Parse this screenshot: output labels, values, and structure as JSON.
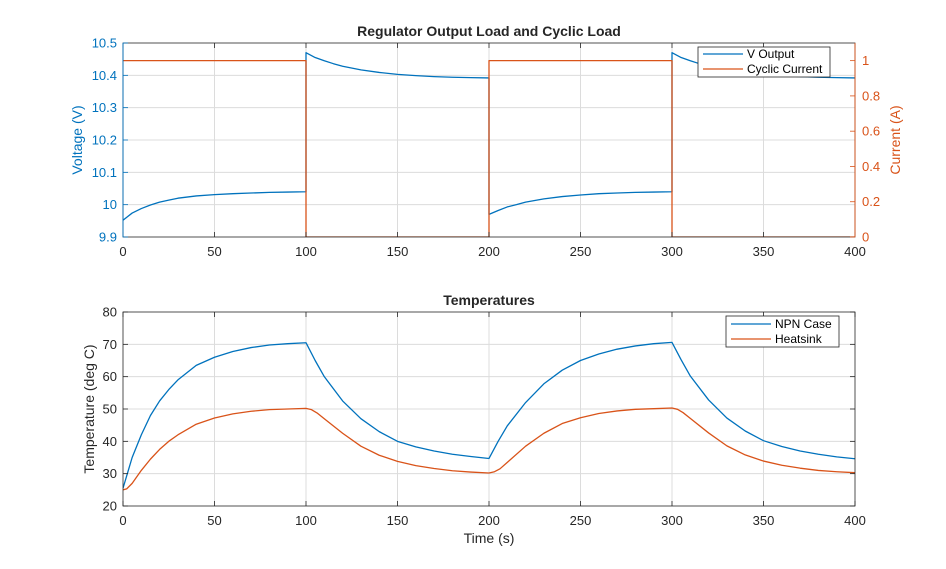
{
  "colors": {
    "blue": "#0072BD",
    "orange": "#D95319",
    "axis": "#262626",
    "grid": "#dcdcdc"
  },
  "chart_data": [
    {
      "type": "line",
      "title": "Regulator Output Load and Cyclic Load",
      "xlabel": "",
      "ylabel_left": "Voltage (V)",
      "ylabel_right": "Current (A)",
      "xlim": [
        0,
        400
      ],
      "ylim_left": [
        9.9,
        10.5
      ],
      "ylim_right": [
        0,
        1.1
      ],
      "xticks": [
        "0",
        "50",
        "100",
        "150",
        "200",
        "250",
        "300",
        "350",
        "400"
      ],
      "yticks_left": [
        "9.9",
        "10",
        "10.1",
        "10.2",
        "10.3",
        "10.4",
        "10.5"
      ],
      "yticks_right": [
        "0",
        "0.2",
        "0.4",
        "0.6",
        "0.8",
        "1"
      ],
      "legend_position": "top-right",
      "series": [
        {
          "name": "V Output",
          "axis": "left",
          "color": "#0072BD",
          "x": [
            0,
            5,
            10,
            15,
            20,
            25,
            30,
            40,
            50,
            60,
            70,
            80,
            90,
            100,
            100,
            105,
            110,
            115,
            120,
            130,
            140,
            150,
            160,
            170,
            180,
            190,
            200,
            200,
            205,
            210,
            215,
            220,
            230,
            240,
            250,
            260,
            270,
            280,
            290,
            300,
            300,
            305,
            310,
            315,
            320,
            330,
            340,
            350,
            360,
            370,
            380,
            390,
            400
          ],
          "y": [
            9.952,
            9.974,
            9.988,
            9.999,
            10.008,
            10.014,
            10.02,
            10.027,
            10.031,
            10.034,
            10.036,
            10.038,
            10.039,
            10.04,
            10.47,
            10.455,
            10.445,
            10.436,
            10.428,
            10.417,
            10.409,
            10.403,
            10.399,
            10.396,
            10.394,
            10.393,
            10.392,
            9.97,
            9.982,
            9.993,
            10.0,
            10.008,
            10.018,
            10.025,
            10.03,
            10.034,
            10.036,
            10.038,
            10.039,
            10.04,
            10.47,
            10.455,
            10.445,
            10.436,
            10.428,
            10.417,
            10.409,
            10.403,
            10.399,
            10.396,
            10.394,
            10.393,
            10.392
          ]
        },
        {
          "name": "Cyclic Current",
          "axis": "right",
          "color": "#D95319",
          "x": [
            0,
            100,
            100,
            200,
            200,
            300,
            300,
            400
          ],
          "y": [
            1,
            1,
            0,
            0,
            1,
            1,
            0,
            0
          ]
        }
      ]
    },
    {
      "type": "line",
      "title": "Temperatures",
      "xlabel": "Time (s)",
      "ylabel": "Temperature (deg C)",
      "xlim": [
        0,
        400
      ],
      "ylim": [
        20,
        80
      ],
      "xticks": [
        "0",
        "50",
        "100",
        "150",
        "200",
        "250",
        "300",
        "350",
        "400"
      ],
      "yticks": [
        "20",
        "30",
        "40",
        "50",
        "60",
        "70",
        "80"
      ],
      "legend_position": "top-right",
      "series": [
        {
          "name": "NPN Case",
          "color": "#0072BD",
          "x": [
            0,
            5,
            10,
            15,
            20,
            25,
            30,
            40,
            50,
            60,
            70,
            80,
            90,
            100,
            105,
            110,
            120,
            130,
            140,
            150,
            160,
            170,
            180,
            190,
            200,
            205,
            210,
            220,
            230,
            240,
            250,
            260,
            270,
            280,
            290,
            300,
            305,
            310,
            320,
            330,
            340,
            350,
            360,
            370,
            380,
            390,
            400
          ],
          "y": [
            25.5,
            35,
            42,
            48,
            52.5,
            56,
            59,
            63.5,
            66,
            67.8,
            69,
            69.8,
            70.2,
            70.5,
            65,
            60,
            52.5,
            47,
            43,
            40,
            38.3,
            37,
            36,
            35.3,
            34.7,
            40,
            44.8,
            52,
            57.8,
            62,
            65,
            67,
            68.5,
            69.5,
            70.2,
            70.6,
            65.2,
            60.2,
            52.8,
            47.2,
            43.2,
            40.2,
            38.4,
            37,
            36,
            35.2,
            34.6
          ]
        },
        {
          "name": "Heatsink",
          "color": "#D95319",
          "x": [
            0,
            2,
            5,
            10,
            15,
            20,
            25,
            30,
            40,
            50,
            60,
            70,
            80,
            90,
            100,
            103,
            106,
            110,
            120,
            130,
            140,
            150,
            160,
            170,
            180,
            190,
            200,
            203,
            206,
            210,
            220,
            230,
            240,
            250,
            260,
            270,
            280,
            290,
            300,
            303,
            306,
            310,
            320,
            330,
            340,
            350,
            360,
            370,
            380,
            390,
            400
          ],
          "y": [
            25,
            25.3,
            27,
            31,
            34.5,
            37.5,
            40,
            42,
            45.3,
            47.2,
            48.5,
            49.3,
            49.8,
            50,
            50.2,
            49.8,
            48.8,
            47,
            42.5,
            38.5,
            35.7,
            33.8,
            32.5,
            31.6,
            30.9,
            30.5,
            30.2,
            30.6,
            31.5,
            33.5,
            38.5,
            42.5,
            45.5,
            47.3,
            48.6,
            49.4,
            49.9,
            50.1,
            50.3,
            49.9,
            48.9,
            47.1,
            42.6,
            38.6,
            35.8,
            33.9,
            32.6,
            31.7,
            31,
            30.6,
            30.3
          ]
        }
      ]
    }
  ]
}
